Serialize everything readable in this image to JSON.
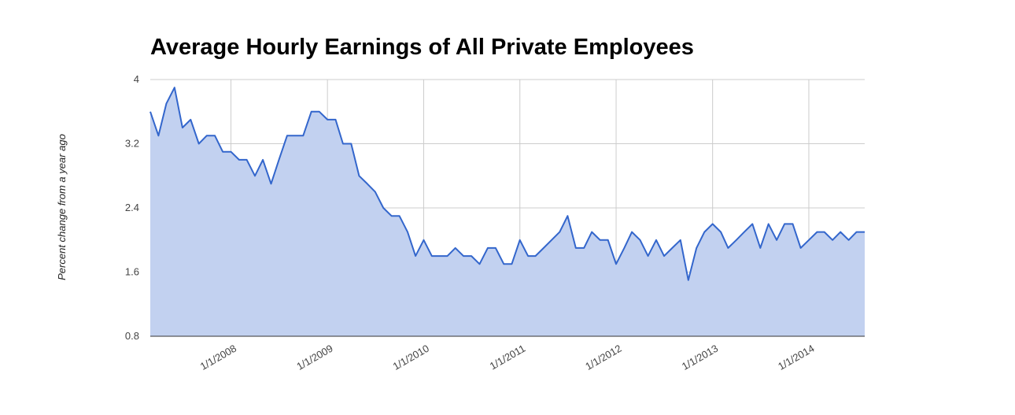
{
  "chart_data": {
    "type": "area",
    "title": "Average Hourly Earnings of All Private Employees",
    "xlabel": "",
    "ylabel": "Percent change from a year ago",
    "x_range": [
      "2007-03-01",
      "2014-08-01"
    ],
    "ylim": [
      0.8,
      4
    ],
    "y_ticks": [
      "4",
      "3.2",
      "2.4",
      "1.6",
      "0.8"
    ],
    "x_ticks": [
      "1/1/2008",
      "1/1/2009",
      "1/1/2010",
      "1/1/2011",
      "1/1/2012",
      "1/1/2013",
      "1/1/2014"
    ],
    "grid": true,
    "legend": "none",
    "colors": {
      "line": "#3366cc",
      "fill": "#c2d1f0",
      "grid": "#cccccc"
    },
    "series": [
      {
        "x": [
          "2007-03-01",
          "2007-04-01",
          "2007-05-01",
          "2007-06-01",
          "2007-07-01",
          "2007-08-01",
          "2007-09-01",
          "2007-10-01",
          "2007-11-01",
          "2007-12-01",
          "2008-01-01",
          "2008-02-01",
          "2008-03-01",
          "2008-04-01",
          "2008-05-01",
          "2008-06-01",
          "2008-07-01",
          "2008-08-01",
          "2008-09-01",
          "2008-10-01",
          "2008-11-01",
          "2008-12-01",
          "2009-01-01",
          "2009-02-01",
          "2009-03-01",
          "2009-04-01",
          "2009-05-01",
          "2009-06-01",
          "2009-07-01",
          "2009-08-01",
          "2009-09-01",
          "2009-10-01",
          "2009-11-01",
          "2009-12-01",
          "2010-01-01",
          "2010-02-01",
          "2010-03-01",
          "2010-04-01",
          "2010-05-01",
          "2010-06-01",
          "2010-07-01",
          "2010-08-01",
          "2010-09-01",
          "2010-10-01",
          "2010-11-01",
          "2010-12-01",
          "2011-01-01",
          "2011-02-01",
          "2011-03-01",
          "2011-04-01",
          "2011-05-01",
          "2011-06-01",
          "2011-07-01",
          "2011-08-01",
          "2011-09-01",
          "2011-10-01",
          "2011-11-01",
          "2011-12-01",
          "2012-01-01",
          "2012-02-01",
          "2012-03-01",
          "2012-04-01",
          "2012-05-01",
          "2012-06-01",
          "2012-07-01",
          "2012-08-01",
          "2012-09-01",
          "2012-10-01",
          "2012-11-01",
          "2012-12-01",
          "2013-01-01",
          "2013-02-01",
          "2013-03-01",
          "2013-04-01",
          "2013-05-01",
          "2013-06-01",
          "2013-07-01",
          "2013-08-01",
          "2013-09-01",
          "2013-10-01",
          "2013-11-01",
          "2013-12-01",
          "2014-01-01",
          "2014-02-01",
          "2014-03-01",
          "2014-04-01",
          "2014-05-01",
          "2014-06-01",
          "2014-07-01",
          "2014-08-01"
        ],
        "values": [
          3.6,
          3.3,
          3.7,
          3.9,
          3.4,
          3.5,
          3.2,
          3.3,
          3.3,
          3.1,
          3.1,
          3.0,
          3.0,
          2.8,
          3.0,
          2.7,
          3.0,
          3.3,
          3.3,
          3.3,
          3.6,
          3.6,
          3.5,
          3.5,
          3.2,
          3.2,
          2.8,
          2.7,
          2.6,
          2.4,
          2.3,
          2.3,
          2.1,
          1.8,
          2.0,
          1.8,
          1.8,
          1.8,
          1.9,
          1.8,
          1.8,
          1.7,
          1.9,
          1.9,
          1.7,
          1.7,
          2.0,
          1.8,
          1.8,
          1.9,
          2.0,
          2.1,
          2.3,
          1.9,
          1.9,
          2.1,
          2.0,
          2.0,
          1.7,
          1.9,
          2.1,
          2.0,
          1.8,
          2.0,
          1.8,
          1.9,
          2.0,
          1.5,
          1.9,
          2.1,
          2.2,
          2.1,
          1.9,
          2.0,
          2.1,
          2.2,
          1.9,
          2.2,
          2.0,
          2.2,
          2.2,
          1.9,
          2.0,
          2.1,
          2.1,
          2.0,
          2.1,
          2.0,
          2.1,
          2.1
        ]
      }
    ]
  }
}
